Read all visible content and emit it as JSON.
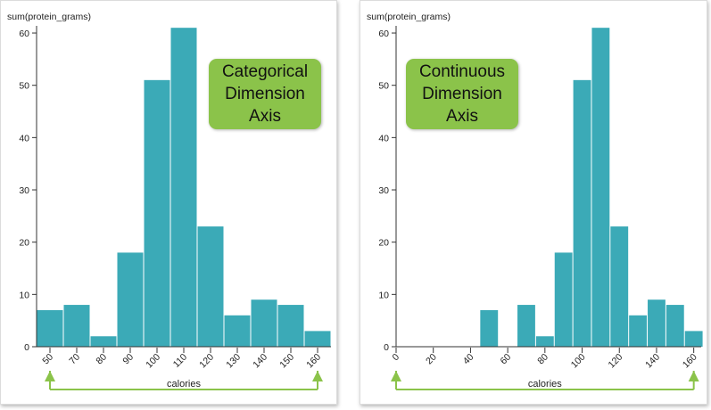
{
  "accent_color": "#8bc34a",
  "bar_color": "#3baab7",
  "chart_data": [
    {
      "type": "bar",
      "title": "",
      "ylabel": "sum(protein_grams)",
      "xlabel": "calories",
      "ylim": [
        0,
        62
      ],
      "yticks": [
        0,
        10,
        20,
        30,
        40,
        50,
        60
      ],
      "categories": [
        "50",
        "70",
        "80",
        "90",
        "100",
        "110",
        "120",
        "130",
        "140",
        "150",
        "160"
      ],
      "values": [
        7,
        8,
        2,
        18,
        51,
        61,
        23,
        6,
        9,
        8,
        3
      ],
      "badge": "Categorical\nDimension\nAxis"
    },
    {
      "type": "bar",
      "title": "",
      "ylabel": "sum(protein_grams)",
      "xlabel": "calories",
      "ylim": [
        0,
        62
      ],
      "xlim": [
        0,
        164
      ],
      "yticks": [
        0,
        10,
        20,
        30,
        40,
        50,
        60
      ],
      "xticks": [
        0,
        20,
        40,
        60,
        80,
        100,
        120,
        140,
        160
      ],
      "x": [
        50,
        70,
        80,
        90,
        100,
        110,
        120,
        130,
        140,
        150,
        160
      ],
      "values": [
        7,
        8,
        2,
        18,
        51,
        61,
        23,
        6,
        9,
        8,
        3
      ],
      "badge": "Continuous\nDimension\nAxis"
    }
  ]
}
